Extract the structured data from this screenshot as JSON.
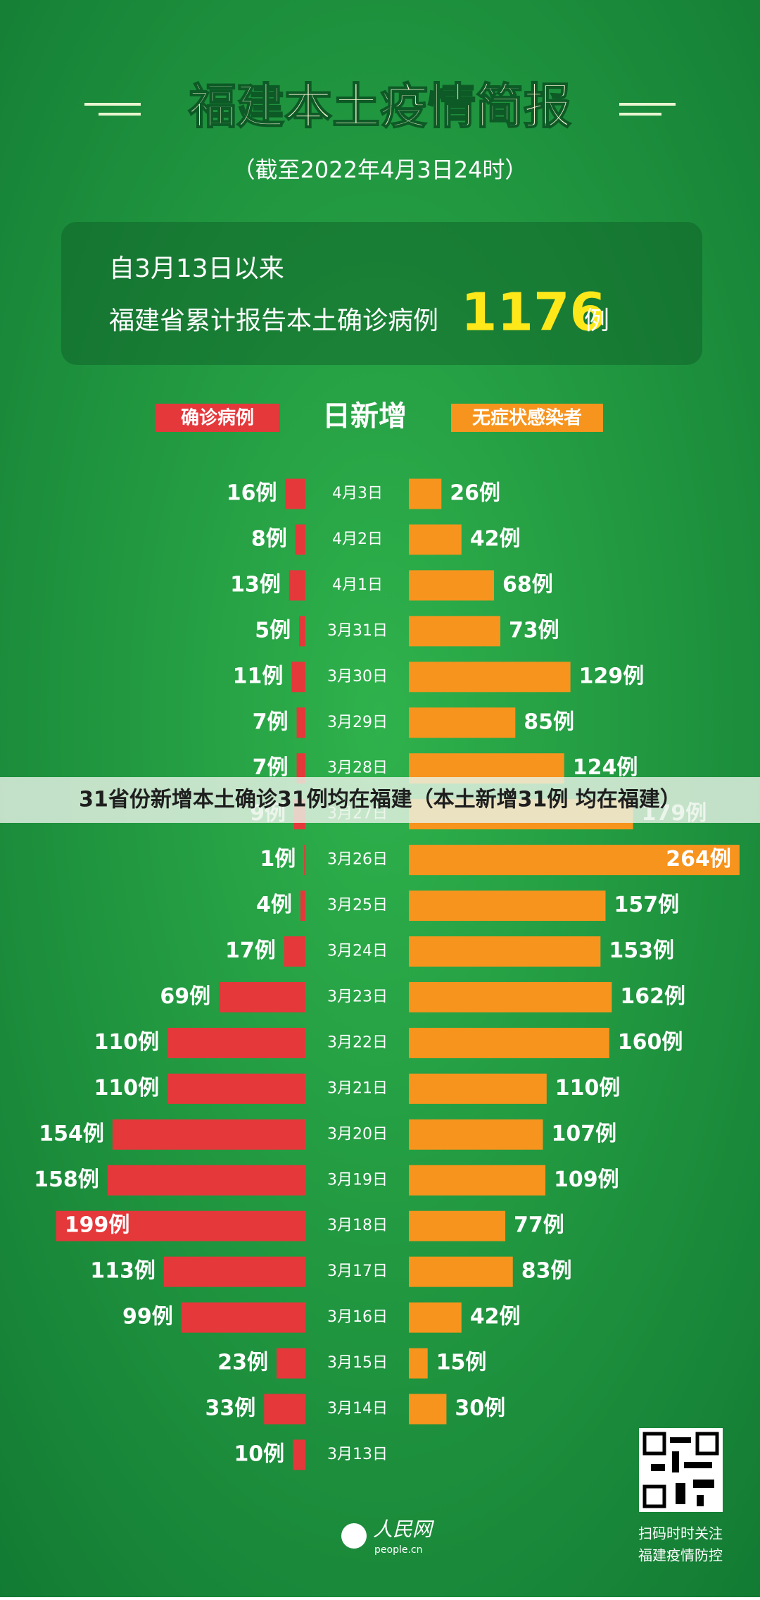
{
  "header": {
    "title": "福建本土疫情简报",
    "subtitle": "（截至2022年4月3日24时）"
  },
  "summary": {
    "since": "自3月13日以来",
    "text": "福建省累计报告本土确诊病例",
    "total": 1176,
    "unit": "例"
  },
  "chart_data": {
    "type": "butterfly",
    "center_label": "日新增",
    "categories": [
      "4月3日",
      "4月2日",
      "4月1日",
      "3月31日",
      "3月30日",
      "3月29日",
      "3月28日",
      "3月27日",
      "3月26日",
      "3月25日",
      "3月24日",
      "3月23日",
      "3月22日",
      "3月21日",
      "3月20日",
      "3月19日",
      "3月18日",
      "3月17日",
      "3月16日",
      "3月15日",
      "3月14日",
      "3月13日"
    ],
    "series": [
      {
        "name": "确诊病例",
        "color": "#e5383b",
        "values": [
          16,
          8,
          13,
          5,
          11,
          7,
          7,
          9,
          1,
          4,
          17,
          69,
          110,
          110,
          154,
          158,
          199,
          113,
          99,
          23,
          33,
          10
        ],
        "value_labels": [
          "16例",
          "8例",
          "13例",
          "5例",
          "11例",
          "7例",
          "7例",
          "9例",
          "1例",
          "4例",
          "17例",
          "69例",
          "110例",
          "110例",
          "154例",
          "158例",
          "199例",
          "113例",
          "99例",
          "23例",
          "33例",
          "10例"
        ]
      },
      {
        "name": "无症状感染者",
        "color": "#f7941d",
        "values": [
          26,
          42,
          68,
          73,
          129,
          85,
          124,
          179,
          264,
          157,
          153,
          162,
          160,
          110,
          107,
          109,
          77,
          83,
          42,
          15,
          30,
          null
        ],
        "value_labels": [
          "26例",
          "42例",
          "68例",
          "73例",
          "129例",
          "85例",
          "124例",
          "179例",
          "264例",
          "157例",
          "153例",
          "162例",
          "160例",
          "110例",
          "107例",
          "109例",
          "77例",
          "83例",
          "42例",
          "15例",
          "30例",
          null
        ]
      }
    ]
  },
  "banner": "31省份新增本土确诊31例均在福建（本土新增31例 均在福建）",
  "footer": {
    "logo": "人民网",
    "site": "people.cn",
    "qr_line1": "扫码时时关注",
    "qr_line2": "福建疫情防控"
  }
}
